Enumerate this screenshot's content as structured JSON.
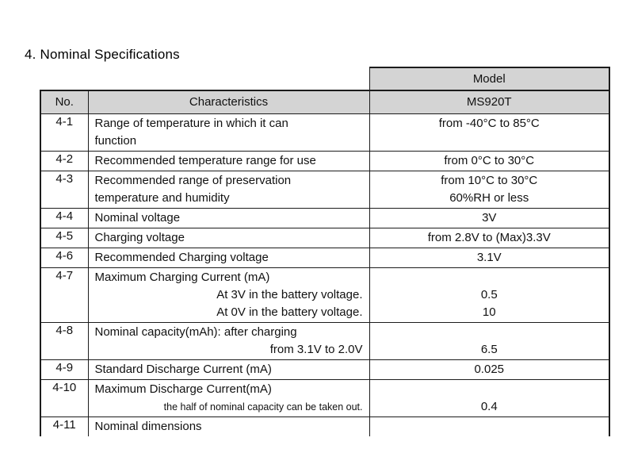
{
  "page": {
    "title": "4. Nominal Specifications"
  },
  "table": {
    "model_header": "Model",
    "columns": {
      "no": "No.",
      "characteristics": "Characteristics",
      "model_value": "MS920T"
    },
    "colors": {
      "header_bg": "#d4d4d4",
      "border": "#1c1c1c"
    },
    "rows": [
      {
        "no": "4-1",
        "characteristic": [
          {
            "text": "Range of temperature in which it can"
          },
          {
            "text": "function"
          }
        ],
        "value": [
          "from -40°C to 85°C",
          ""
        ]
      },
      {
        "no": "4-2",
        "characteristic": [
          {
            "text": "Recommended temperature range for use"
          }
        ],
        "value": [
          "from 0°C to 30°C"
        ]
      },
      {
        "no": "4-3",
        "characteristic": [
          {
            "text": "Recommended range of preservation"
          },
          {
            "text": "temperature and humidity"
          }
        ],
        "value": [
          "from 10°C to 30°C",
          "60%RH or less"
        ]
      },
      {
        "no": "4-4",
        "characteristic": [
          {
            "text": "Nominal voltage"
          }
        ],
        "value": [
          "3V"
        ]
      },
      {
        "no": "4-5",
        "characteristic": [
          {
            "text": "Charging voltage"
          }
        ],
        "value": [
          "from 2.8V to (Max)3.3V"
        ]
      },
      {
        "no": "4-6",
        "characteristic": [
          {
            "text": "Recommended Charging voltage"
          }
        ],
        "value": [
          "3.1V"
        ]
      },
      {
        "no": "4-7",
        "characteristic": [
          {
            "text": "Maximum Charging Current (mA)"
          },
          {
            "text": "At 3V in the battery voltage.",
            "align": "right"
          },
          {
            "text": "At 0V in the battery voltage.",
            "align": "right"
          }
        ],
        "value": [
          "",
          "0.5",
          "10"
        ]
      },
      {
        "no": "4-8",
        "characteristic": [
          {
            "text": "Nominal capacity(mAh): after charging"
          },
          {
            "text": "from 3.1V to 2.0V",
            "align": "right"
          }
        ],
        "value": [
          "",
          "6.5"
        ]
      },
      {
        "no": "4-9",
        "characteristic": [
          {
            "text": "Standard Discharge Current (mA)"
          }
        ],
        "value": [
          "0.025"
        ]
      },
      {
        "no": "4-10",
        "characteristic": [
          {
            "text": "Maximum Discharge Current(mA)"
          },
          {
            "text": "the half of nominal capacity can be taken out.",
            "align": "right",
            "small": true
          }
        ],
        "value": [
          "",
          "0.4"
        ]
      },
      {
        "no": "4-11",
        "characteristic": [
          {
            "text": "Nominal dimensions"
          }
        ],
        "value": [
          ""
        ],
        "cut": true
      }
    ]
  }
}
